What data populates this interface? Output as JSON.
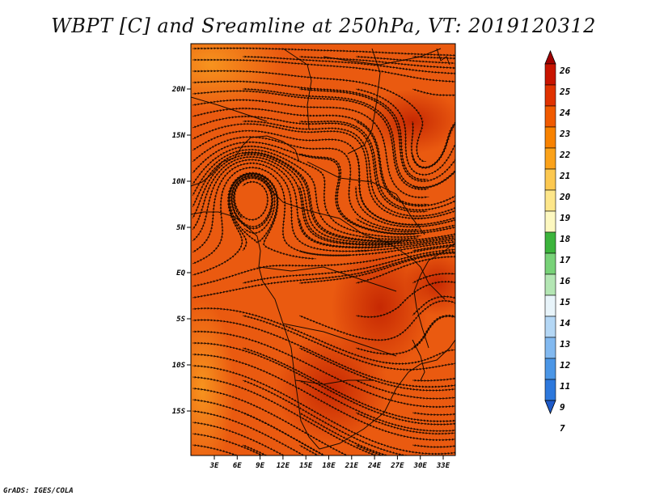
{
  "title": "WBPT [C] and Sreamline at 250hPa, VT: 2019120312",
  "credit": "GrADS: IGES/COLA",
  "lat_labels": [
    "20N",
    "15N",
    "10N",
    "5N",
    "EQ",
    "5S",
    "10S",
    "15S"
  ],
  "lon_labels": [
    "3E",
    "6E",
    "9E",
    "12E",
    "15E",
    "18E",
    "21E",
    "24E",
    "27E",
    "30E",
    "33E"
  ],
  "colorbar": {
    "labels": [
      "26",
      "25",
      "24",
      "23",
      "22",
      "21",
      "20",
      "19",
      "18",
      "17",
      "16",
      "15",
      "14",
      "13",
      "12",
      "11",
      "9",
      "7"
    ],
    "colors": [
      "#a00000",
      "#c81400",
      "#e03200",
      "#f05a00",
      "#f88200",
      "#fba21a",
      "#fcc850",
      "#fde68a",
      "#fdf8c0",
      "#3cb43c",
      "#78d278",
      "#b4e6b4",
      "#e8f4fa",
      "#b4d7f5",
      "#82b9f0",
      "#4b96e6",
      "#2d78dc",
      "#1e5ac8"
    ]
  },
  "map": {
    "background_color": "#ea5a10",
    "streamline_color": "#1a0a00"
  }
}
